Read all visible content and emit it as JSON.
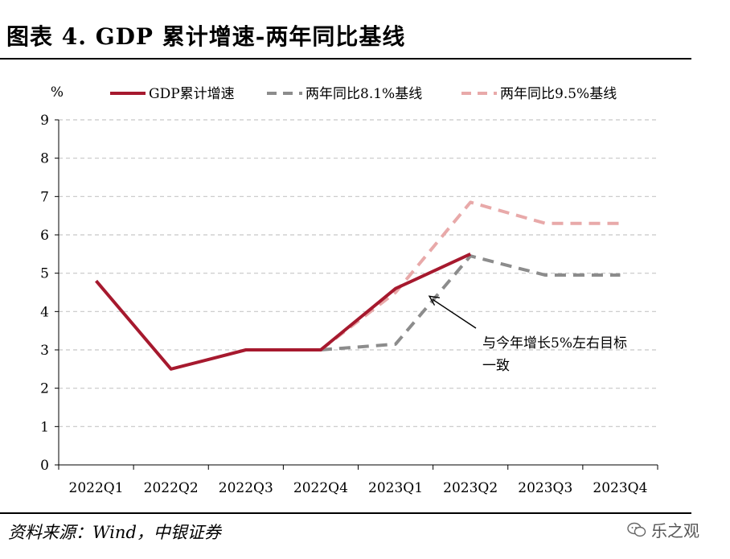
{
  "title": "图表 4. GDP 累计增速-两年同比基线",
  "source": "资料来源：Wind，中银证券",
  "watermark": "乐之观",
  "chart_data": {
    "type": "line",
    "ylabel": "%",
    "ylim": [
      0,
      9
    ],
    "yticks": [
      0,
      1,
      2,
      3,
      4,
      5,
      6,
      7,
      8,
      9
    ],
    "categories": [
      "2022Q1",
      "2022Q2",
      "2022Q3",
      "2022Q4",
      "2023Q1",
      "2023Q2",
      "2023Q3",
      "2023Q4"
    ],
    "grid": true,
    "legend_position": "top",
    "series": [
      {
        "name": "GDP累计增速",
        "color": "#A6192E",
        "style": "solid",
        "values": [
          4.8,
          2.5,
          3.0,
          3.0,
          4.6,
          5.5,
          null,
          null
        ]
      },
      {
        "name": "两年同比8.1%基线",
        "color": "#8C8C8C",
        "style": "dashed",
        "values": [
          null,
          null,
          null,
          3.0,
          3.15,
          5.45,
          4.95,
          4.95
        ]
      },
      {
        "name": "两年同比9.5%基线",
        "color": "#E8A9A9",
        "style": "dashed",
        "values": [
          null,
          null,
          null,
          3.0,
          4.5,
          6.85,
          6.3,
          6.3
        ]
      }
    ],
    "annotation": {
      "lines": [
        "与今年增长5%左右目标",
        "一致"
      ],
      "arrow_to": {
        "category": "2023Q1",
        "value": 4.4
      }
    }
  }
}
